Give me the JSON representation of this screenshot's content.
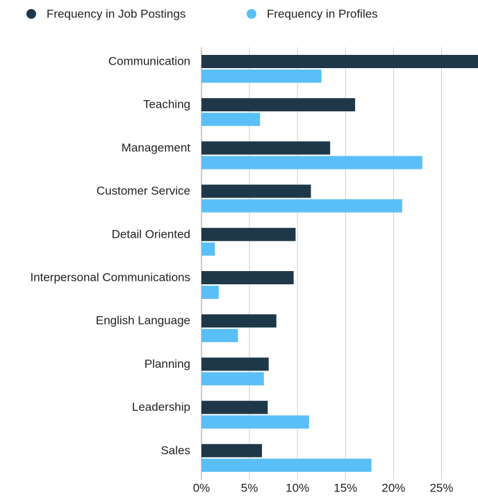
{
  "chart_data": {
    "type": "hbar",
    "categories": [
      "Communication",
      "Teaching",
      "Management",
      "Customer Service",
      "Detail Oriented",
      "Interpersonal Communications",
      "English Language",
      "Planning",
      "Leadership",
      "Sales"
    ],
    "series": [
      {
        "name": "Frequency in Job Postings",
        "color": "#1e3849",
        "values": [
          30,
          16.0,
          13.4,
          11.4,
          9.8,
          9.6,
          7.8,
          7.0,
          6.9,
          6.3
        ]
      },
      {
        "name": "Frequency in Profiles",
        "color": "#5bbff7",
        "values": [
          12.5,
          6.1,
          23.0,
          20.9,
          1.4,
          1.8,
          3.8,
          6.5,
          11.2,
          17.7
        ]
      }
    ],
    "xlim": [
      0,
      28.8
    ],
    "xticks": [
      {
        "value": 0,
        "label": "0%"
      },
      {
        "value": 5,
        "label": "5%"
      },
      {
        "value": 10,
        "label": "10%"
      },
      {
        "value": 15,
        "label": "15%"
      },
      {
        "value": 20,
        "label": "20%"
      },
      {
        "value": 25,
        "label": "25%"
      }
    ],
    "grid": true,
    "legend": "top"
  }
}
